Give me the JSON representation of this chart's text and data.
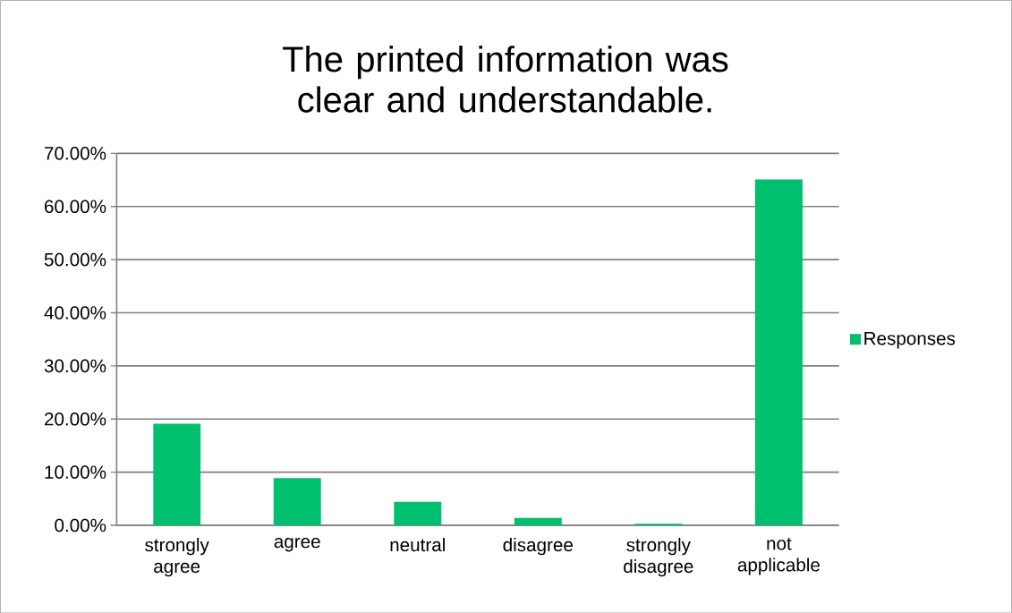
{
  "chart_data": {
    "type": "bar",
    "title": "The printed information was clear and understandable.",
    "categories": [
      "strongly agree",
      "agree",
      "neutral",
      "disagree",
      "strongly disagree",
      "not applicable"
    ],
    "series": [
      {
        "name": "Responses",
        "color": "#00bf6f",
        "values": [
          19.1,
          8.9,
          4.4,
          1.4,
          0.3,
          65.1
        ]
      }
    ],
    "ylim": [
      0,
      70
    ],
    "yticks": [
      {
        "value": 0,
        "label": "0.00%"
      },
      {
        "value": 10,
        "label": "10.00%"
      },
      {
        "value": 20,
        "label": "20.00%"
      },
      {
        "value": 30,
        "label": "30.00%"
      },
      {
        "value": 40,
        "label": "40.00%"
      },
      {
        "value": 50,
        "label": "50.00%"
      },
      {
        "value": 60,
        "label": "60.00%"
      },
      {
        "value": 70,
        "label": "70.00%"
      }
    ],
    "grid": "y",
    "legend": "right"
  }
}
